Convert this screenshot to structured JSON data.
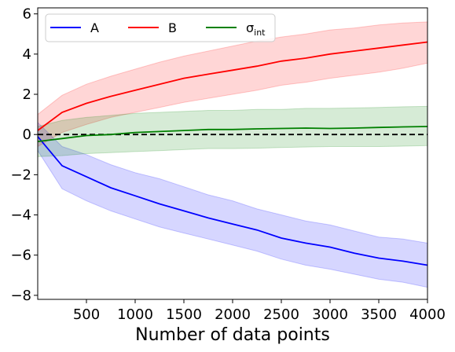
{
  "chart_data": {
    "type": "line",
    "xlabel": "Number of data points",
    "ylabel": "",
    "title": "",
    "xlim": [
      0,
      4000
    ],
    "ylim": [
      -8.2,
      6.3
    ],
    "xticks": [
      500,
      1000,
      1500,
      2000,
      2500,
      3000,
      3500,
      4000
    ],
    "yticks": [
      -8,
      -6,
      -4,
      -2,
      0,
      2,
      4,
      6
    ],
    "ytick_labels": [
      "−8",
      "−6",
      "−4",
      "−2",
      "0",
      "2",
      "4",
      "6"
    ],
    "legend": {
      "placement": "top-left",
      "columns": 3
    },
    "reference_line": {
      "y": 0,
      "style": "dashed",
      "color": "#000000"
    },
    "x": [
      0,
      250,
      500,
      750,
      1000,
      1250,
      1500,
      1750,
      2000,
      2250,
      2500,
      2750,
      3000,
      3250,
      3500,
      3750,
      4000
    ],
    "series": [
      {
        "name": "A",
        "color": "#0000ff",
        "band_color": "#0000ff",
        "values": [
          -0.1,
          -1.55,
          -2.1,
          -2.65,
          -3.05,
          -3.45,
          -3.8,
          -4.15,
          -4.45,
          -4.75,
          -5.15,
          -5.4,
          -5.6,
          -5.9,
          -6.15,
          -6.3,
          -6.5
        ],
        "lower": [
          -0.8,
          -2.7,
          -3.3,
          -3.8,
          -4.2,
          -4.6,
          -4.9,
          -5.2,
          -5.5,
          -5.8,
          -6.2,
          -6.5,
          -6.7,
          -6.95,
          -7.2,
          -7.35,
          -7.6
        ],
        "upper": [
          0.6,
          -0.6,
          -1.0,
          -1.5,
          -1.9,
          -2.2,
          -2.6,
          -3.0,
          -3.3,
          -3.7,
          -4.0,
          -4.3,
          -4.5,
          -4.8,
          -5.1,
          -5.2,
          -5.4
        ]
      },
      {
        "name": "B",
        "color": "#ff0000",
        "band_color": "#ff0000",
        "values": [
          0.2,
          1.1,
          1.55,
          1.9,
          2.2,
          2.5,
          2.8,
          3.0,
          3.2,
          3.4,
          3.65,
          3.8,
          4.0,
          4.15,
          4.3,
          4.45,
          4.6
        ],
        "lower": [
          -0.6,
          0.1,
          0.5,
          0.85,
          1.1,
          1.35,
          1.6,
          1.8,
          2.0,
          2.2,
          2.45,
          2.6,
          2.8,
          2.95,
          3.1,
          3.3,
          3.55
        ],
        "upper": [
          1.0,
          1.95,
          2.5,
          2.9,
          3.25,
          3.6,
          3.9,
          4.15,
          4.4,
          4.65,
          4.85,
          5.0,
          5.2,
          5.3,
          5.45,
          5.55,
          5.6
        ]
      },
      {
        "name": "σint",
        "name_main": "σ",
        "name_sub": "int",
        "color": "#008000",
        "band_color": "#008000",
        "values": [
          -0.35,
          -0.2,
          -0.05,
          0.0,
          0.1,
          0.15,
          0.2,
          0.25,
          0.25,
          0.28,
          0.3,
          0.32,
          0.3,
          0.32,
          0.35,
          0.38,
          0.4
        ],
        "lower": [
          -1.1,
          -1.05,
          -0.95,
          -0.9,
          -0.85,
          -0.8,
          -0.75,
          -0.7,
          -0.7,
          -0.68,
          -0.65,
          -0.62,
          -0.6,
          -0.6,
          -0.6,
          -0.58,
          -0.55
        ],
        "upper": [
          0.4,
          0.7,
          0.85,
          0.95,
          1.05,
          1.1,
          1.15,
          1.2,
          1.2,
          1.25,
          1.25,
          1.3,
          1.3,
          1.32,
          1.35,
          1.38,
          1.4
        ]
      }
    ]
  }
}
